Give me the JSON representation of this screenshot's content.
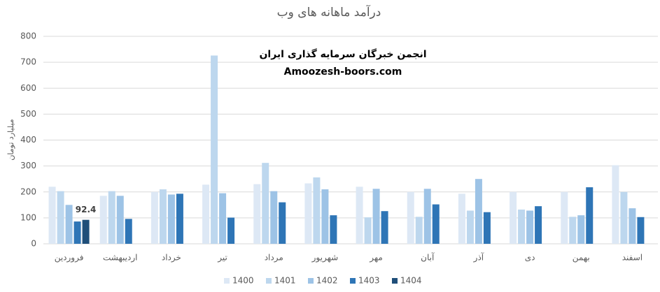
{
  "chart_data": {
    "type": "bar",
    "title": "درآمد ماهانه های وب",
    "y_label": "میلیارد تومان",
    "annotations": [
      "انجمن خبرگان سرمایه گذاری ایران",
      "Amoozesh-boors.com"
    ],
    "categories": [
      "فروردین",
      "اردیبهشت",
      "خرداد",
      "تیر",
      "مرداد",
      "شهریور",
      "مهر",
      "آبان",
      "آذر",
      "دی",
      "بهمن",
      "اسفند"
    ],
    "series": [
      {
        "name": "1400",
        "color": "#dde8f5",
        "values": [
          220,
          185,
          200,
          228,
          230,
          233,
          220,
          200,
          193,
          200,
          200,
          303
        ]
      },
      {
        "name": "1401",
        "color": "#bdd7ee",
        "values": [
          203,
          203,
          210,
          726,
          312,
          256,
          102,
          104,
          128,
          132,
          104,
          200
        ]
      },
      {
        "name": "1402",
        "color": "#9dc3e6",
        "values": [
          150,
          185,
          190,
          195,
          203,
          210,
          212,
          212,
          250,
          128,
          110,
          137
        ]
      },
      {
        "name": "1403",
        "color": "#2e75b6",
        "values": [
          86,
          96,
          193,
          101,
          160,
          110,
          126,
          152,
          122,
          145,
          218,
          103
        ]
      },
      {
        "name": "1404",
        "color": "#1f4e79",
        "values": [
          92.4,
          null,
          null,
          null,
          null,
          null,
          null,
          null,
          null,
          null,
          null,
          null
        ],
        "data_labels": true
      }
    ],
    "ylim": [
      0,
      800
    ],
    "yticks": [
      0,
      100,
      200,
      300,
      400,
      500,
      600,
      700,
      800
    ],
    "grid": true,
    "legend": "bottom"
  }
}
